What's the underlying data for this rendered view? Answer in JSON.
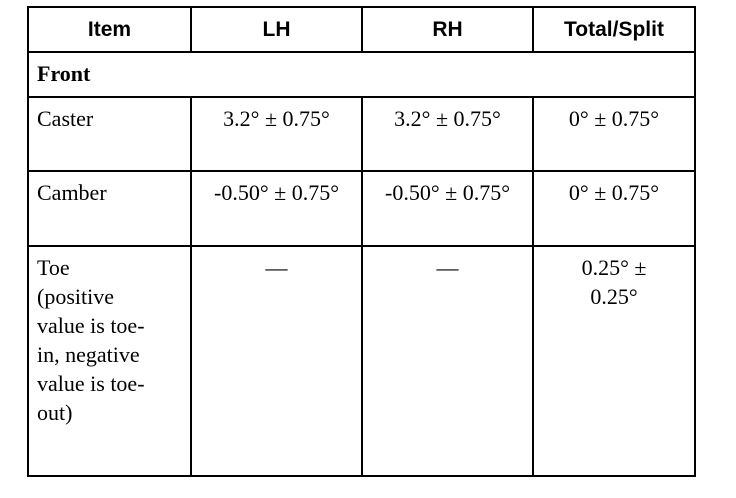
{
  "table": {
    "headers": [
      "Item",
      "LH",
      "RH",
      "Total/Split"
    ],
    "section": "Front",
    "rows": [
      {
        "item": "Caster",
        "lh": "3.2° ± 0.75°",
        "rh": "3.2° ± 0.75°",
        "total": "0° ± 0.75°"
      },
      {
        "item": "Camber",
        "lh": "-0.50° ± 0.75°",
        "rh": "-0.50° ± 0.75°",
        "total": "0° ± 0.75°"
      },
      {
        "item": "Toe (positive value is toe-in, negative value is toe-out)",
        "lh": "—",
        "rh": "—",
        "total": "0.25° ± 0.25°"
      }
    ]
  }
}
